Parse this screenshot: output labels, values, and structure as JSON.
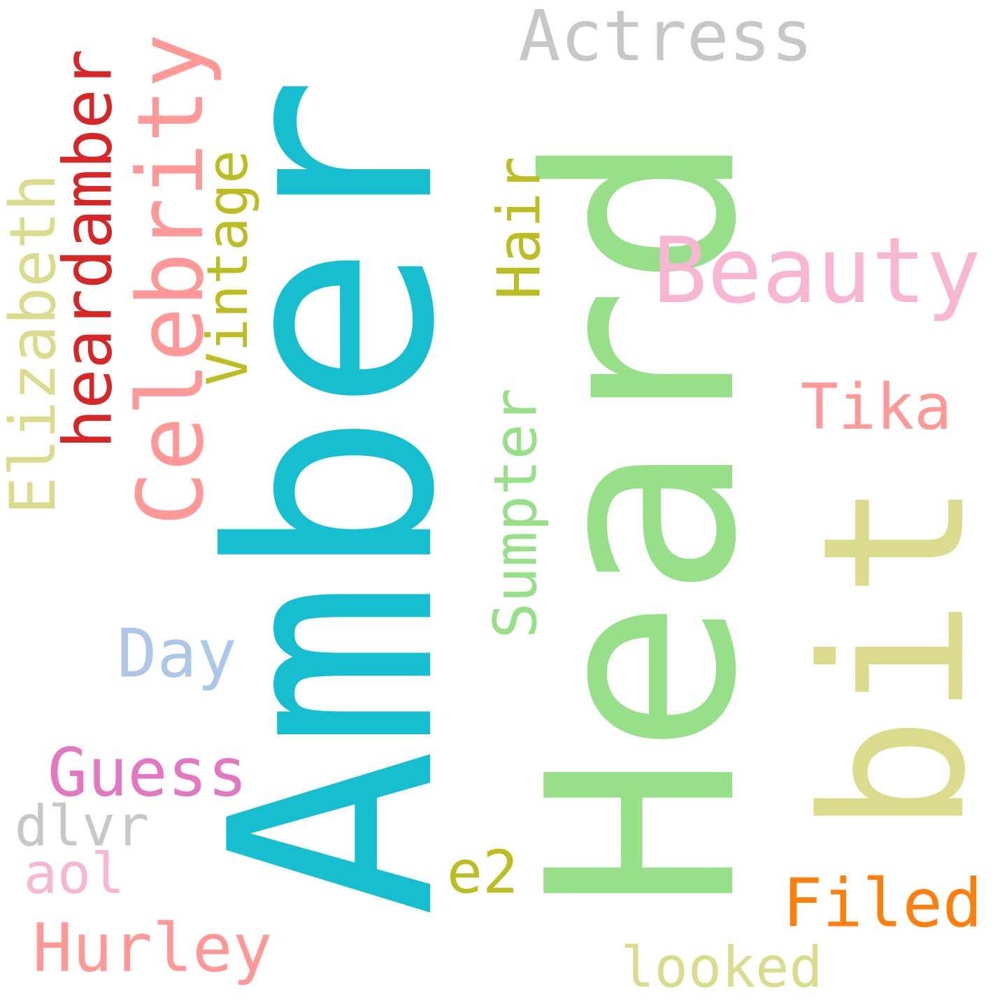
{
  "words": [
    {
      "id": "amber",
      "text": "Amber",
      "color": "#17becf",
      "vertical": true
    },
    {
      "id": "heard",
      "text": "Heard",
      "color": "#98df8a",
      "vertical": true
    },
    {
      "id": "bit",
      "text": "bit",
      "color": "#dbdb8d",
      "vertical": true
    },
    {
      "id": "celebrity",
      "text": "Celebrity",
      "color": "#ff9896",
      "vertical": true
    },
    {
      "id": "beauty",
      "text": "Beauty",
      "color": "#f7b6d2",
      "vertical": false
    },
    {
      "id": "actress",
      "text": "Actress",
      "color": "#c7c7c7",
      "vertical": false
    },
    {
      "id": "elizabeth",
      "text": "Elizabeth",
      "color": "#dbdb8d",
      "vertical": true
    },
    {
      "id": "heardamber",
      "text": "heardamber",
      "color": "#d62728",
      "vertical": true
    },
    {
      "id": "vintage",
      "text": "Vintage",
      "color": "#bcbd22",
      "vertical": true
    },
    {
      "id": "hair",
      "text": "Hair",
      "color": "#bcbd22",
      "vertical": true
    },
    {
      "id": "sumpter",
      "text": "Sumpter",
      "color": "#98df8a",
      "vertical": true
    },
    {
      "id": "tika",
      "text": "Tika",
      "color": "#ff9896",
      "vertical": false
    },
    {
      "id": "day",
      "text": "Day",
      "color": "#aec7e8",
      "vertical": false
    },
    {
      "id": "guess",
      "text": "Guess",
      "color": "#e377c2",
      "vertical": false
    },
    {
      "id": "dlvr",
      "text": "dlvr",
      "color": "#c7c7c7",
      "vertical": false
    },
    {
      "id": "aol",
      "text": "aol",
      "color": "#f7b6d2",
      "vertical": false
    },
    {
      "id": "e2",
      "text": "e2",
      "color": "#bcbd22",
      "vertical": false
    },
    {
      "id": "hurley",
      "text": "Hurley",
      "color": "#ff9896",
      "vertical": false
    },
    {
      "id": "filed",
      "text": "Filed",
      "color": "#ff7f0e",
      "vertical": false
    },
    {
      "id": "looked",
      "text": "looked",
      "color": "#dbdb8d",
      "vertical": false
    }
  ]
}
